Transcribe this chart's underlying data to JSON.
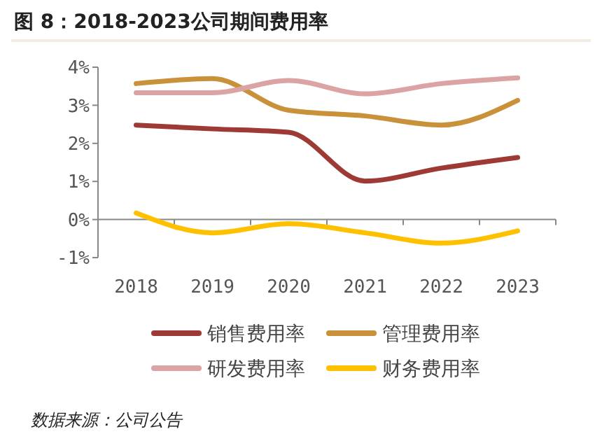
{
  "chart_data": {
    "type": "line",
    "title": "图 8：2018-2023公司期间费用率",
    "categories": [
      "2018",
      "2019",
      "2020",
      "2021",
      "2022",
      "2023"
    ],
    "series": [
      {
        "name": "销售费用率",
        "color": "#9e3a35",
        "values": [
          2.48,
          2.38,
          2.29,
          1.01,
          1.35,
          1.63
        ]
      },
      {
        "name": "管理费用率",
        "color": "#c8913a",
        "values": [
          3.57,
          3.7,
          2.87,
          2.72,
          2.48,
          3.13
        ]
      },
      {
        "name": "研发费用率",
        "color": "#dba3a3",
        "values": [
          3.33,
          3.33,
          3.65,
          3.3,
          3.57,
          3.72
        ]
      },
      {
        "name": "财务费用率",
        "color": "#ffc000",
        "values": [
          0.17,
          -0.35,
          -0.11,
          -0.35,
          -0.62,
          -0.3
        ]
      }
    ],
    "ylim": [
      -1,
      4
    ],
    "yticks": [
      {
        "value": -1,
        "label": "-1%"
      },
      {
        "value": 0,
        "label": "0%"
      },
      {
        "value": 1,
        "label": "1%"
      },
      {
        "value": 2,
        "label": "2%"
      },
      {
        "value": 3,
        "label": "3%"
      },
      {
        "value": 4,
        "label": "4%"
      }
    ],
    "legend": "bottom",
    "marker": "none",
    "line_style": "solid",
    "annotations": [
      "数据来源：公司公告"
    ]
  }
}
